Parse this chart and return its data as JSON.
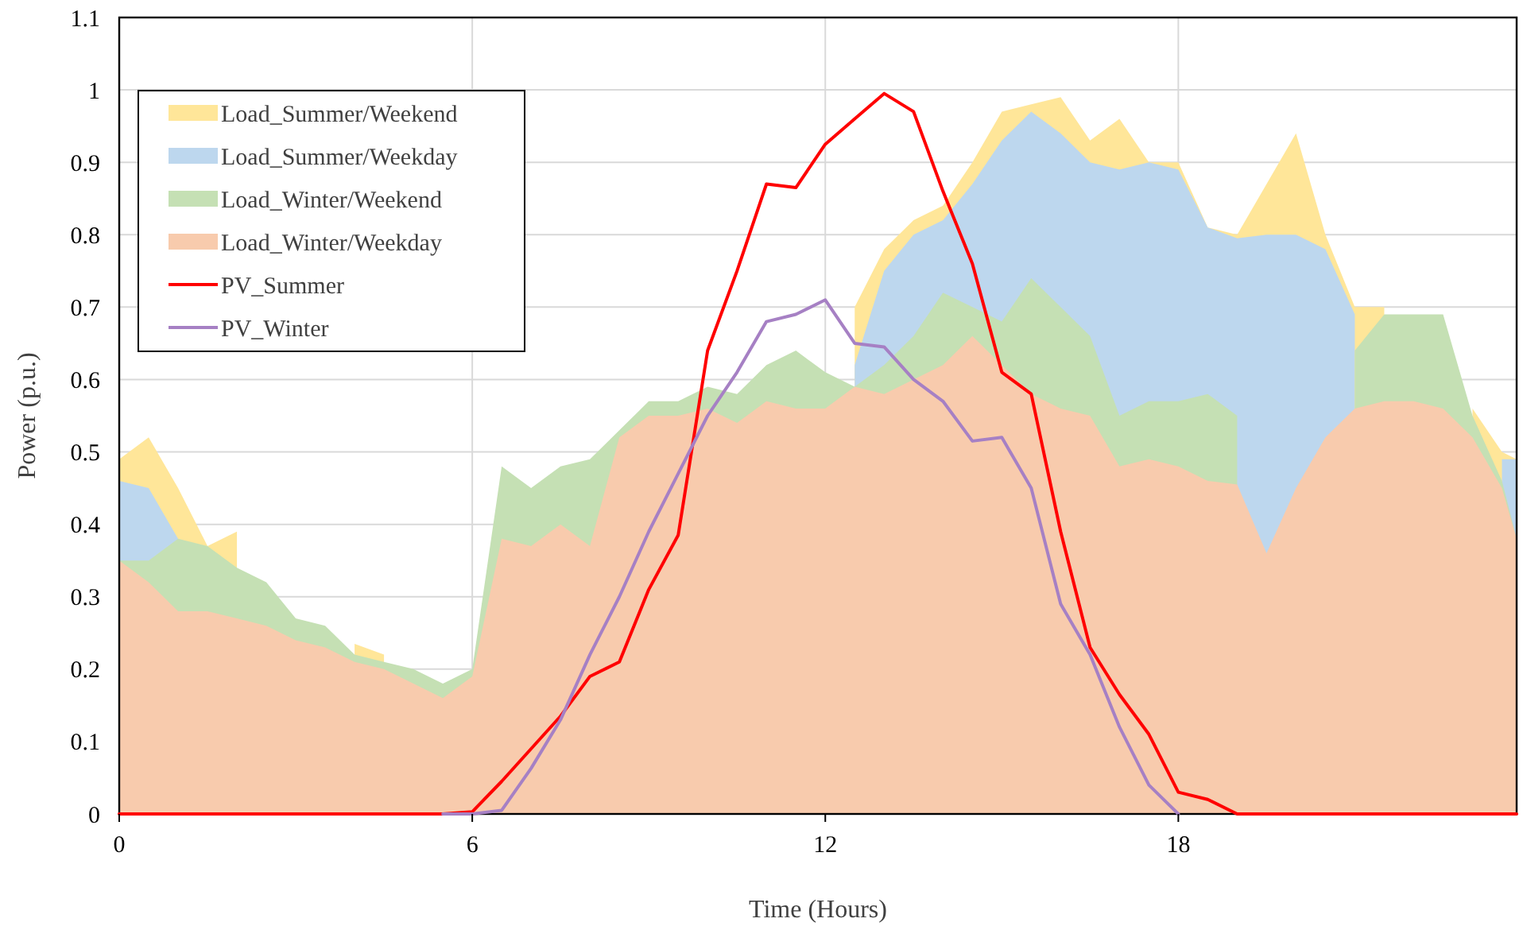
{
  "chart_data": {
    "type": "area",
    "xlabel": "Time (Hours)",
    "ylabel": "Power (p.u.)",
    "x": [
      0,
      0.5,
      1,
      1.5,
      2,
      2.5,
      3,
      3.5,
      4,
      4.5,
      5,
      5.5,
      6,
      6.5,
      7,
      7.5,
      8,
      8.5,
      9,
      9.5,
      10,
      10.5,
      11,
      11.5,
      12,
      12.5,
      13,
      13.5,
      14,
      14.5,
      15,
      15.5,
      16,
      16.5,
      17,
      17.5,
      18,
      18.5,
      19,
      19.5,
      20,
      20.5,
      21,
      21.5,
      22,
      22.5,
      23,
      23.5,
      23.75
    ],
    "xlim": [
      0,
      23.75
    ],
    "xticks": [
      0,
      6,
      12,
      18
    ],
    "ylim": [
      0,
      1.1
    ],
    "yticks": [
      0,
      0.1,
      0.2,
      0.3,
      0.4,
      0.5,
      0.6,
      0.7,
      0.8,
      0.9,
      1,
      1.1
    ],
    "grid": true,
    "legend": "top left",
    "series": [
      {
        "name": "Load_Summer/Weekend",
        "color": "#ffe699",
        "values": [
          0.49,
          0.52,
          0.45,
          0.37,
          0.39,
          null,
          null,
          null,
          0.235,
          0.22,
          null,
          null,
          null,
          null,
          null,
          null,
          null,
          null,
          null,
          null,
          null,
          null,
          null,
          null,
          null,
          0.7,
          0.78,
          0.82,
          0.84,
          0.9,
          0.97,
          0.98,
          0.99,
          0.93,
          0.96,
          0.9,
          0.9,
          0.81,
          0.8,
          0.87,
          0.94,
          0.8,
          0.7,
          0.7,
          null,
          null,
          0.56,
          0.5,
          0.49
        ]
      },
      {
        "name": "Load_Summer/Weekday",
        "color": "#bdd7ee",
        "values": [
          0.46,
          0.45,
          0.38,
          null,
          null,
          null,
          null,
          null,
          null,
          null,
          null,
          null,
          null,
          null,
          null,
          null,
          null,
          null,
          null,
          null,
          null,
          null,
          null,
          null,
          null,
          0.62,
          0.75,
          0.8,
          0.82,
          0.87,
          0.93,
          0.97,
          0.94,
          0.9,
          0.89,
          0.9,
          0.89,
          0.81,
          0.795,
          0.8,
          0.8,
          0.78,
          0.69,
          null,
          null,
          null,
          null,
          0.49,
          0.49
        ]
      },
      {
        "name": "Load_Winter/Weekend",
        "color": "#c5e0b4",
        "values": [
          0.35,
          0.35,
          0.38,
          0.37,
          0.34,
          0.32,
          0.27,
          0.26,
          0.22,
          0.21,
          0.2,
          0.18,
          0.2,
          0.48,
          0.45,
          0.48,
          0.49,
          0.53,
          0.57,
          0.57,
          0.59,
          0.58,
          0.62,
          0.64,
          0.61,
          0.59,
          0.62,
          0.66,
          0.72,
          0.7,
          0.68,
          0.74,
          0.7,
          0.66,
          0.55,
          0.57,
          0.57,
          0.58,
          0.55,
          null,
          null,
          null,
          0.64,
          0.69,
          0.69,
          0.69,
          0.55,
          0.46,
          0.38
        ]
      },
      {
        "name": "Load_Winter/Weekday",
        "color": "#f8cbad",
        "values": [
          0.35,
          0.32,
          0.28,
          0.28,
          0.27,
          0.26,
          0.24,
          0.23,
          0.21,
          0.2,
          0.18,
          0.16,
          0.19,
          0.38,
          0.37,
          0.4,
          0.37,
          0.52,
          0.55,
          0.55,
          0.56,
          0.54,
          0.57,
          0.56,
          0.56,
          0.59,
          0.58,
          0.6,
          0.62,
          0.66,
          0.62,
          0.58,
          0.56,
          0.55,
          0.48,
          0.49,
          0.48,
          0.46,
          0.455,
          0.36,
          0.45,
          0.52,
          0.56,
          0.57,
          0.57,
          0.56,
          0.52,
          0.45,
          0.38
        ]
      },
      {
        "name": "PV_Summer",
        "type": "line",
        "color": "#ff0000",
        "values": [
          0,
          0,
          0,
          0,
          0,
          0,
          0,
          0,
          0,
          0,
          0,
          0,
          0.003,
          0.045,
          0.09,
          0.135,
          0.19,
          0.21,
          0.31,
          0.385,
          0.64,
          0.75,
          0.87,
          0.865,
          0.925,
          0.96,
          0.995,
          0.97,
          0.86,
          0.76,
          0.61,
          0.58,
          0.39,
          0.23,
          0.165,
          0.11,
          0.03,
          0.02,
          0,
          0,
          0,
          0,
          0,
          0,
          0,
          0,
          0,
          0,
          0
        ]
      },
      {
        "name": "PV_Winter",
        "type": "line",
        "color": "#a680c4",
        "values": [
          null,
          null,
          null,
          null,
          null,
          null,
          null,
          null,
          null,
          null,
          null,
          0,
          0,
          0.005,
          0.063,
          0.13,
          0.22,
          0.3,
          0.39,
          0.47,
          0.55,
          0.61,
          0.68,
          0.69,
          0.71,
          0.65,
          0.645,
          0.6,
          0.57,
          0.515,
          0.52,
          0.45,
          0.29,
          0.22,
          0.12,
          0.04,
          0,
          null,
          null,
          null,
          null,
          null,
          null,
          null,
          null,
          null,
          null,
          null,
          null
        ]
      }
    ]
  }
}
